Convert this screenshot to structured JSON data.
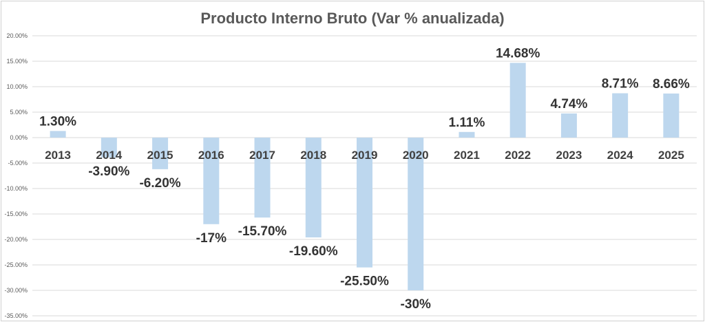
{
  "chart_data": {
    "type": "bar",
    "title": "Producto Interno Bruto (Var % anualizada)",
    "xlabel": "",
    "ylabel": "",
    "categories": [
      "2013",
      "2014",
      "2015",
      "2016",
      "2017",
      "2018",
      "2019",
      "2020",
      "2021",
      "2022",
      "2023",
      "2024",
      "2025"
    ],
    "values": [
      1.3,
      -3.9,
      -6.2,
      -17,
      -15.7,
      -19.6,
      -25.5,
      -30,
      1.11,
      14.68,
      4.74,
      8.71,
      8.66
    ],
    "data_labels": [
      "1.30%",
      "-3.90%",
      "-6.20%",
      "-17%",
      "-15.70%",
      "-19.60%",
      "-25.50%",
      "-30%",
      "1.11%",
      "14.68%",
      "4.74%",
      "8.71%",
      "8.66%"
    ],
    "ylim": [
      -35,
      20
    ],
    "yticks": [
      20,
      15,
      10,
      5,
      0,
      -5,
      -10,
      -15,
      -20,
      -25,
      -30,
      -35
    ],
    "ytick_labels": [
      "20.00%",
      "15.00%",
      "10.00%",
      "5.00%",
      "0.00%",
      "-5.00%",
      "-10.00%",
      "-15.00%",
      "-20.00%",
      "-25.00%",
      "-30.00%",
      "-35.00%"
    ],
    "grid": true,
    "legend": "none",
    "bar_color": "#bdd7ee"
  }
}
